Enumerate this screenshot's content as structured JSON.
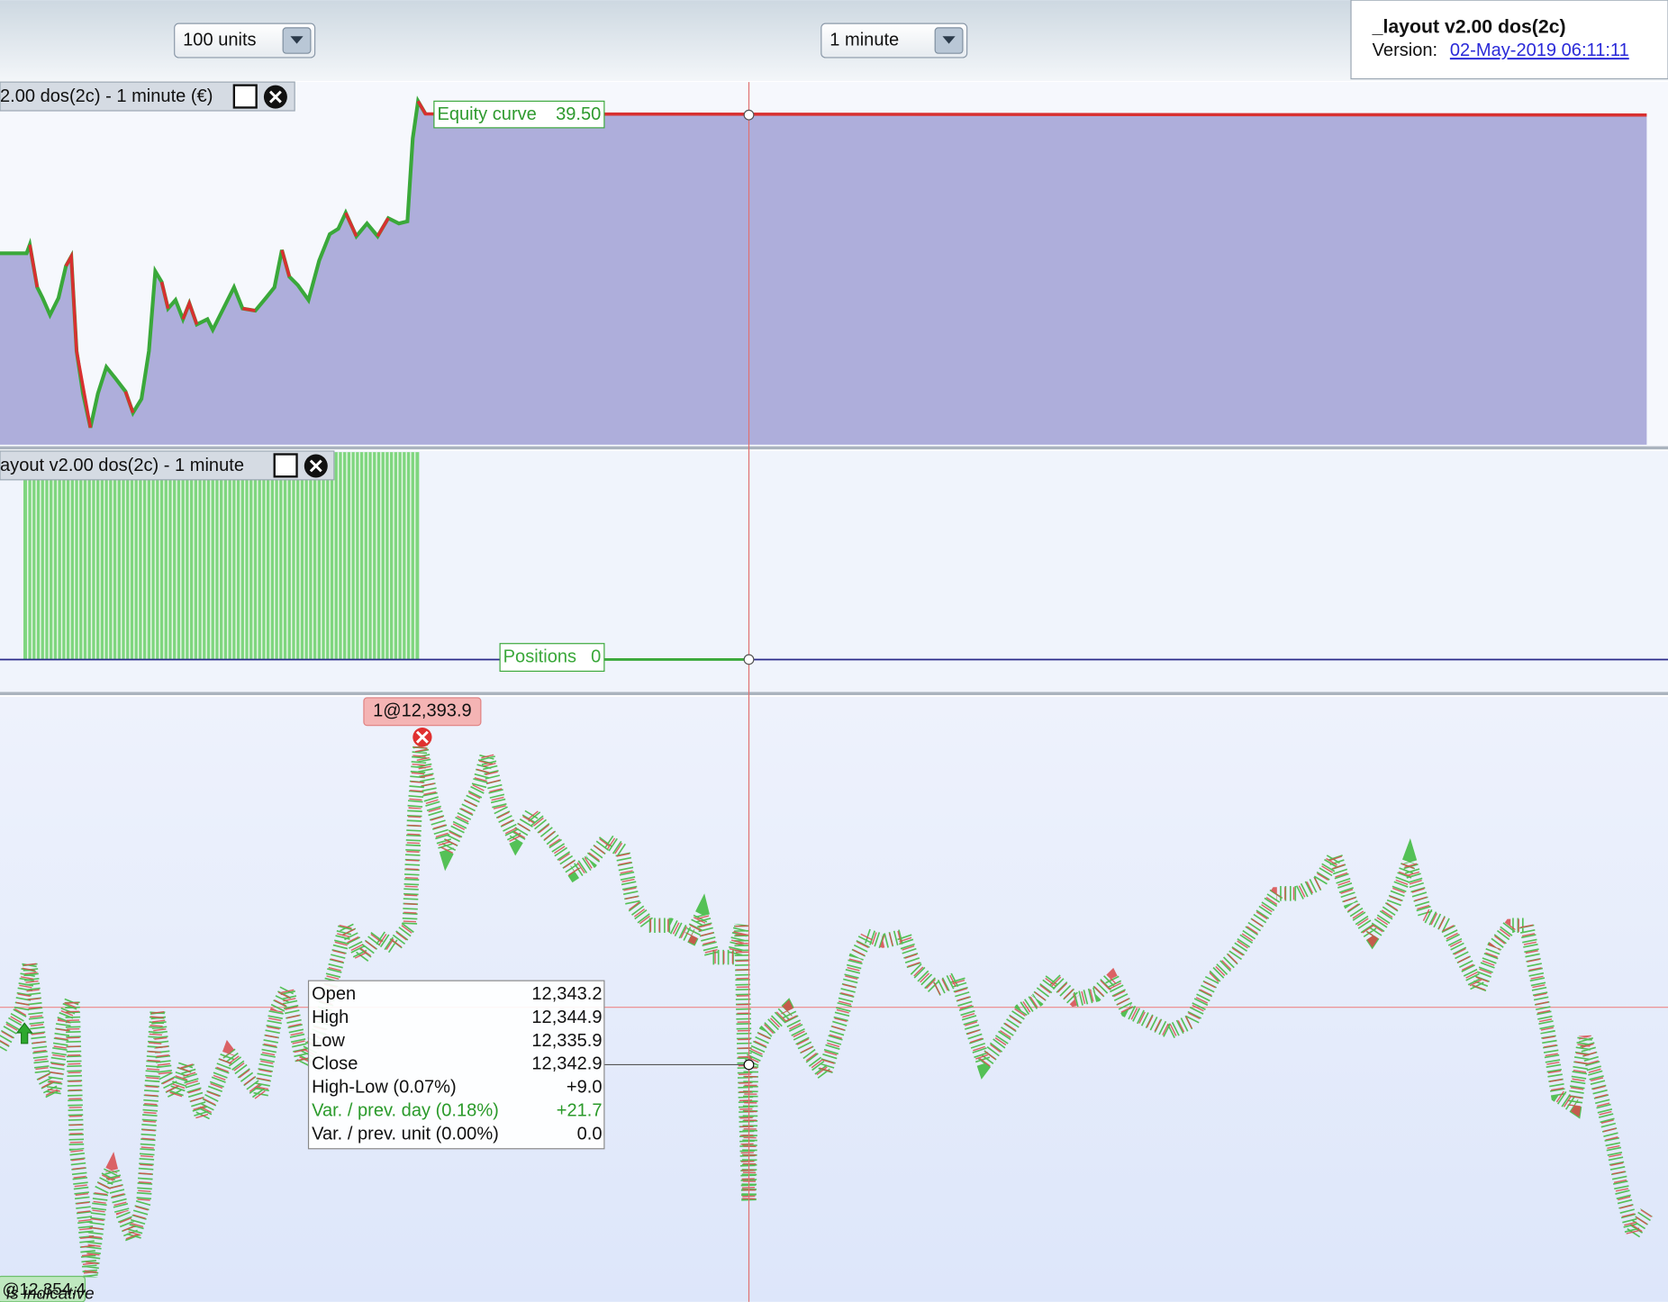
{
  "toolbar": {
    "quantity": "100 units",
    "timeframe": "1 minute"
  },
  "info": {
    "title": "_layout v2.00 dos(2c)",
    "version_label": "Version:",
    "version_date": "02-May-2019 06:11:11"
  },
  "equity_panel": {
    "title": "2.00 dos(2c) - 1 minute (€)",
    "label": "Equity curve",
    "value": "39.50"
  },
  "positions_panel": {
    "title": "ayout v2.00 dos(2c) - 1 minute",
    "label": "Positions",
    "value": "0"
  },
  "price_panel": {
    "order_label": "1@12,393.9",
    "entry_label": "@12,354.4",
    "footer": "is indicative"
  },
  "tooltip": {
    "rows": [
      [
        "Open",
        "12,343.2"
      ],
      [
        "High",
        "12,344.9"
      ],
      [
        "Low",
        "12,335.9"
      ],
      [
        "Close",
        "12,342.9"
      ],
      [
        "High-Low (0.07%)",
        "+9.0"
      ],
      [
        "Var. / prev. day (0.18%)",
        "+21.7"
      ],
      [
        "Var. / prev. unit (0.00%)",
        "0.0"
      ]
    ]
  }
}
